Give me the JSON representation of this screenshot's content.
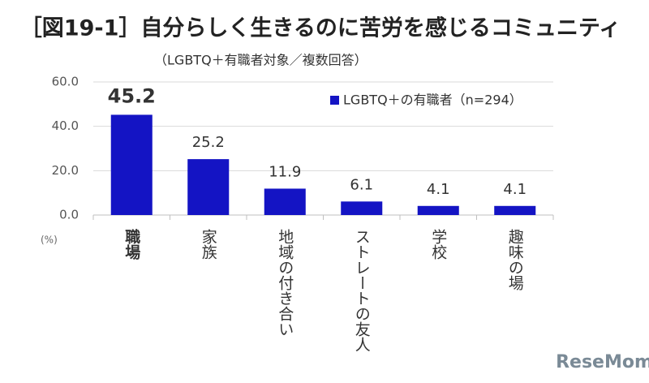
{
  "chart_data": {
    "type": "bar",
    "title": "［図19-1］自分らしく生きるのに苦労を感じるコミュニティ",
    "subtitle": "（LGBTQ＋有職者対象／複数回答）",
    "y_unit": "(%)",
    "categories": [
      "職場",
      "家族",
      "地域の付き合い",
      "ストレートの友人",
      "学校",
      "趣味の場"
    ],
    "series": [
      {
        "name": "LGBTQ＋の有職者（n=294）",
        "color": "#1414c4",
        "values": [
          45.2,
          25.2,
          11.9,
          6.1,
          4.1,
          4.1
        ]
      }
    ],
    "ylim": [
      0,
      60
    ],
    "yticks": [
      {
        "value": 0,
        "label": "0.0"
      },
      {
        "value": 20,
        "label": "20.0"
      },
      {
        "value": 40,
        "label": "40.0"
      },
      {
        "value": 60,
        "label": "60.0"
      }
    ],
    "grid": true,
    "legend": "top-right",
    "watermark": "ReseMom"
  }
}
